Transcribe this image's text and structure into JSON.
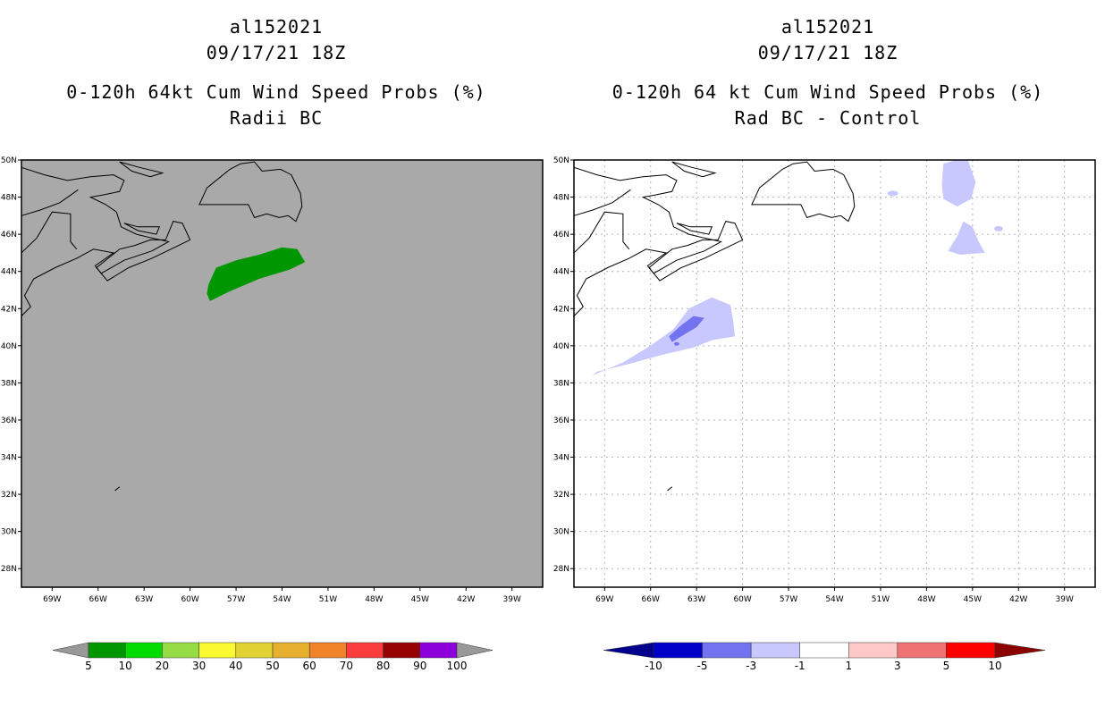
{
  "left_panel": {
    "title_lines": [
      "al152021",
      "09/17/21 18Z",
      "0-120h 64kt Cum Wind Speed Probs (%)",
      "Radii BC"
    ]
  },
  "right_panel": {
    "title_lines": [
      "al152021",
      "09/17/21 18Z",
      "0-120h 64 kt Cum Wind Speed Probs (%)",
      "Rad BC - Control"
    ]
  },
  "colors": {
    "land_background": "#a9a9a9",
    "contour_green": "#009600",
    "diff_light_blue": "#c8c8ff",
    "diff_mid_blue": "#7373f0"
  },
  "chart_data": [
    {
      "type": "heatmap",
      "title": "0-120h 64kt Cum Wind Speed Probs (%) Radii BC",
      "xlabel": "",
      "ylabel": "",
      "xlim": [
        -71,
        -37
      ],
      "ylim": [
        27,
        50
      ],
      "x_ticks": [
        "69W",
        "66W",
        "63W",
        "60W",
        "57W",
        "54W",
        "51W",
        "48W",
        "45W",
        "42W",
        "39W"
      ],
      "y_ticks": [
        "28N",
        "30N",
        "32N",
        "34N",
        "36N",
        "38N",
        "40N",
        "42N",
        "44N",
        "46N",
        "48N",
        "50N"
      ],
      "grid": false,
      "contours": [
        {
          "level": "5-10",
          "color": "#009600",
          "region": "southeast of Nova Scotia",
          "lon_range": [
            -58.9,
            -52.5
          ],
          "lat_range": [
            42.4,
            45.3
          ]
        }
      ],
      "colorbar": {
        "labels": [
          "5",
          "10",
          "20",
          "30",
          "40",
          "50",
          "60",
          "70",
          "80",
          "90",
          "100"
        ],
        "colors": [
          "#009600",
          "#00dc00",
          "#96dc46",
          "#fafa32",
          "#e1d232",
          "#e6af2d",
          "#f08228",
          "#fa3c3c",
          "#960000",
          "#8c00dc"
        ],
        "over_color": "#999999",
        "under_color": "#999999"
      }
    },
    {
      "type": "heatmap",
      "title": "0-120h 64 kt Cum Wind Speed Probs (%) Rad BC - Control",
      "xlabel": "",
      "ylabel": "",
      "xlim": [
        -71,
        -37
      ],
      "ylim": [
        27,
        50
      ],
      "x_ticks": [
        "69W",
        "66W",
        "63W",
        "60W",
        "57W",
        "54W",
        "51W",
        "48W",
        "45W",
        "42W",
        "39W"
      ],
      "y_ticks": [
        "28N",
        "30N",
        "32N",
        "34N",
        "36N",
        "38N",
        "40N",
        "42N",
        "44N",
        "46N",
        "48N",
        "50N"
      ],
      "grid": true,
      "contours": [
        {
          "level": "-3 to -1",
          "color": "#c8c8ff",
          "region": "southwest offshore",
          "lon_range": [
            -69.8,
            -60.5
          ],
          "lat_range": [
            38.4,
            42.6
          ]
        },
        {
          "level": "-5 to -3",
          "color": "#7373f0",
          "region": "southwest offshore core",
          "lon_range": [
            -64.8,
            -62.5
          ],
          "lat_range": [
            40.1,
            41.6
          ]
        },
        {
          "level": "-3 to -1",
          "color": "#c8c8ff",
          "region": "northeast",
          "lon_range": [
            -47.0,
            -44.8
          ],
          "lat_range": [
            47.5,
            50
          ]
        },
        {
          "level": "-3 to -1",
          "color": "#c8c8ff",
          "region": "northeast small",
          "lon_range": [
            -46.6,
            -44.2
          ],
          "lat_range": [
            44.9,
            46.7
          ]
        }
      ],
      "colorbar": {
        "labels": [
          "-10",
          "-5",
          "-3",
          "-1",
          "1",
          "3",
          "5",
          "10"
        ],
        "colors": [
          "#0000c8",
          "#7373f0",
          "#c8c8ff",
          "#ffffff",
          "#ffc8c8",
          "#f07373",
          "#ff0000"
        ],
        "under_color": "#00008c",
        "over_color": "#8c0000"
      }
    }
  ]
}
